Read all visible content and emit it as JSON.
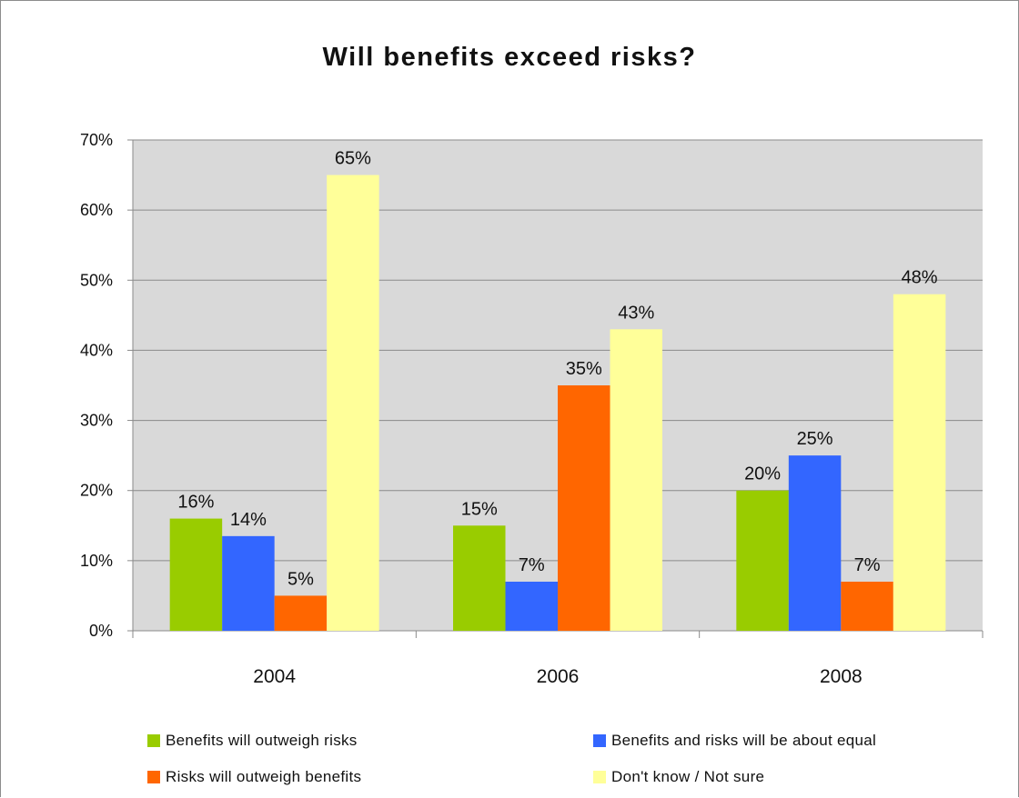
{
  "chart_data": {
    "type": "bar",
    "title": "Will benefits exceed risks?",
    "categories": [
      "2004",
      "2006",
      "2008"
    ],
    "series": [
      {
        "name": "Benefits will outweigh risks",
        "color": "#99cc00",
        "values": [
          16,
          15,
          20
        ],
        "labels": [
          "16%",
          "15%",
          "20%"
        ]
      },
      {
        "name": "Benefits and risks will be about equal",
        "color": "#3366ff",
        "values": [
          13.5,
          7,
          25
        ],
        "labels": [
          "14%",
          "7%",
          "25%"
        ]
      },
      {
        "name": "Risks will outweigh benefits",
        "color": "#ff6600",
        "values": [
          5,
          35,
          7
        ],
        "labels": [
          "5%",
          "35%",
          "7%"
        ]
      },
      {
        "name": "Don't know / Not sure",
        "color": "#ffff99",
        "values": [
          65,
          43,
          48
        ],
        "labels": [
          "65%",
          "43%",
          "48%"
        ]
      }
    ],
    "ylim": [
      0,
      70
    ],
    "yticks": [
      "0%",
      "10%",
      "20%",
      "30%",
      "40%",
      "50%",
      "60%",
      "70%"
    ],
    "ytick_values": [
      0,
      10,
      20,
      30,
      40,
      50,
      60,
      70
    ],
    "grid": true,
    "plot_background": "#d9d9d9",
    "legend_position": "bottom"
  }
}
